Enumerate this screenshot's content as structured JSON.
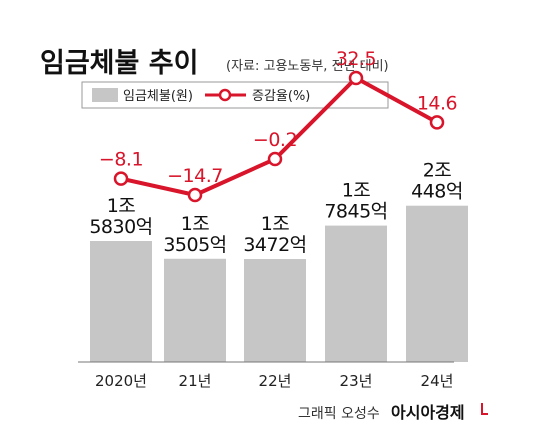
{
  "header": {
    "title": "임금체불 추이",
    "source": "(자료: 고용노동부, 전년 대비)"
  },
  "legend": {
    "bar_label": "임금체불(원)",
    "line_label": "증감율(%)"
  },
  "footer": {
    "credit": "그래픽 오성수",
    "brand": "아시아경제"
  },
  "colors": {
    "bar": "#c6c6c6",
    "line": "#d8152a"
  },
  "chart_data": {
    "type": "bar",
    "categories": [
      "2020년",
      "21년",
      "22년",
      "23년",
      "24년"
    ],
    "series": [
      {
        "name": "임금체불(원)",
        "type": "bar",
        "values": [
          15830,
          13505,
          13472,
          17845,
          20448
        ],
        "unit": "억",
        "labels": [
          [
            "1조",
            "5830억"
          ],
          [
            "1조",
            "3505억"
          ],
          [
            "1조",
            "3472억"
          ],
          [
            "1조",
            "7845억"
          ],
          [
            "2조",
            "448억"
          ]
        ]
      },
      {
        "name": "증감율(%)",
        "type": "line",
        "values": [
          -8.1,
          -14.7,
          -0.2,
          32.5,
          14.6
        ],
        "labels": [
          "−8.1",
          "−14.7",
          "−0.2",
          "32.5",
          "14.6"
        ]
      }
    ]
  }
}
